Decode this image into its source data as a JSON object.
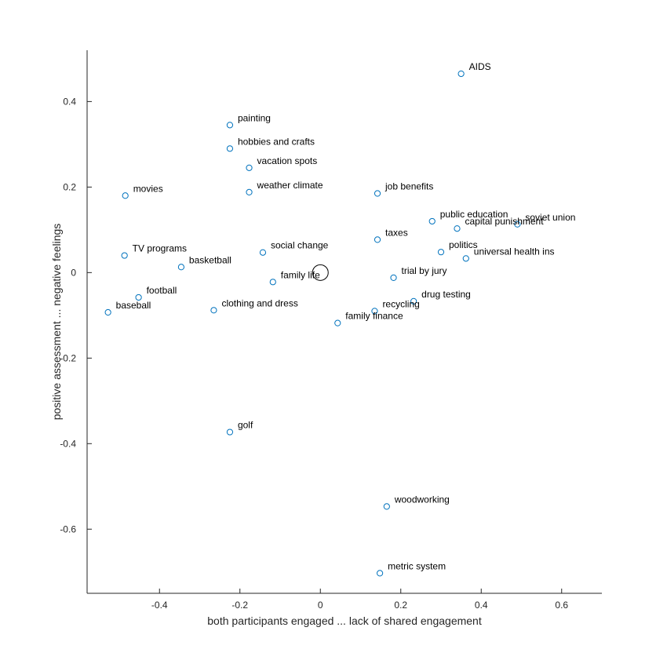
{
  "chart_data": {
    "type": "scatter",
    "xlabel": "both participants engaged ... lack of shared engagement",
    "ylabel": "positive assessment ... negative feelings",
    "xlim": [
      -0.58,
      0.7
    ],
    "ylim": [
      -0.75,
      0.52
    ],
    "xticks": [
      -0.4,
      -0.2,
      0,
      0.2,
      0.4,
      0.6
    ],
    "xtick_labels": [
      "-0.4",
      "-0.2",
      "0",
      "0.2",
      "0.4",
      "0.6"
    ],
    "yticks": [
      -0.6,
      -0.4,
      -0.2,
      0,
      0.2,
      0.4
    ],
    "ytick_labels": [
      "-0.6",
      "-0.4",
      "-0.2",
      "0",
      "0.2",
      "0.4"
    ],
    "grid": false,
    "marker_color": "#0072BD",
    "center_marker": {
      "x": 0,
      "y": 0,
      "color": "#000000"
    },
    "points": [
      {
        "label": "AIDS",
        "x": 0.35,
        "y": 0.465
      },
      {
        "label": "painting",
        "x": -0.225,
        "y": 0.345
      },
      {
        "label": "hobbies and crafts",
        "x": -0.225,
        "y": 0.29
      },
      {
        "label": "vacation spots",
        "x": -0.177,
        "y": 0.245
      },
      {
        "label": "movies",
        "x": -0.485,
        "y": 0.18
      },
      {
        "label": "weather climate",
        "x": -0.177,
        "y": 0.188
      },
      {
        "label": "job benefits",
        "x": 0.142,
        "y": 0.185
      },
      {
        "label": "public education",
        "x": 0.278,
        "y": 0.12
      },
      {
        "label": "soviet union",
        "x": 0.49,
        "y": 0.113
      },
      {
        "label": "capital punishment",
        "x": 0.34,
        "y": 0.103
      },
      {
        "label": "taxes",
        "x": 0.142,
        "y": 0.077
      },
      {
        "label": "politics",
        "x": 0.3,
        "y": 0.048
      },
      {
        "label": "universal health ins",
        "x": 0.362,
        "y": 0.033
      },
      {
        "label": "TV programs",
        "x": -0.487,
        "y": 0.04
      },
      {
        "label": "social change",
        "x": -0.143,
        "y": 0.047
      },
      {
        "label": "basketball",
        "x": -0.346,
        "y": 0.013
      },
      {
        "label": "family life",
        "x": -0.118,
        "y": -0.022
      },
      {
        "label": "trial by jury",
        "x": 0.182,
        "y": -0.012
      },
      {
        "label": "football",
        "x": -0.452,
        "y": -0.058
      },
      {
        "label": "baseball",
        "x": -0.528,
        "y": -0.093
      },
      {
        "label": "clothing and dress",
        "x": -0.265,
        "y": -0.088
      },
      {
        "label": "drug testing",
        "x": 0.232,
        "y": -0.067
      },
      {
        "label": "recycling",
        "x": 0.135,
        "y": -0.09
      },
      {
        "label": "family finance",
        "x": 0.043,
        "y": -0.118
      },
      {
        "label": "golf",
        "x": -0.225,
        "y": -0.373
      },
      {
        "label": "woodworking",
        "x": 0.165,
        "y": -0.547
      },
      {
        "label": "metric system",
        "x": 0.148,
        "y": -0.703
      }
    ]
  }
}
